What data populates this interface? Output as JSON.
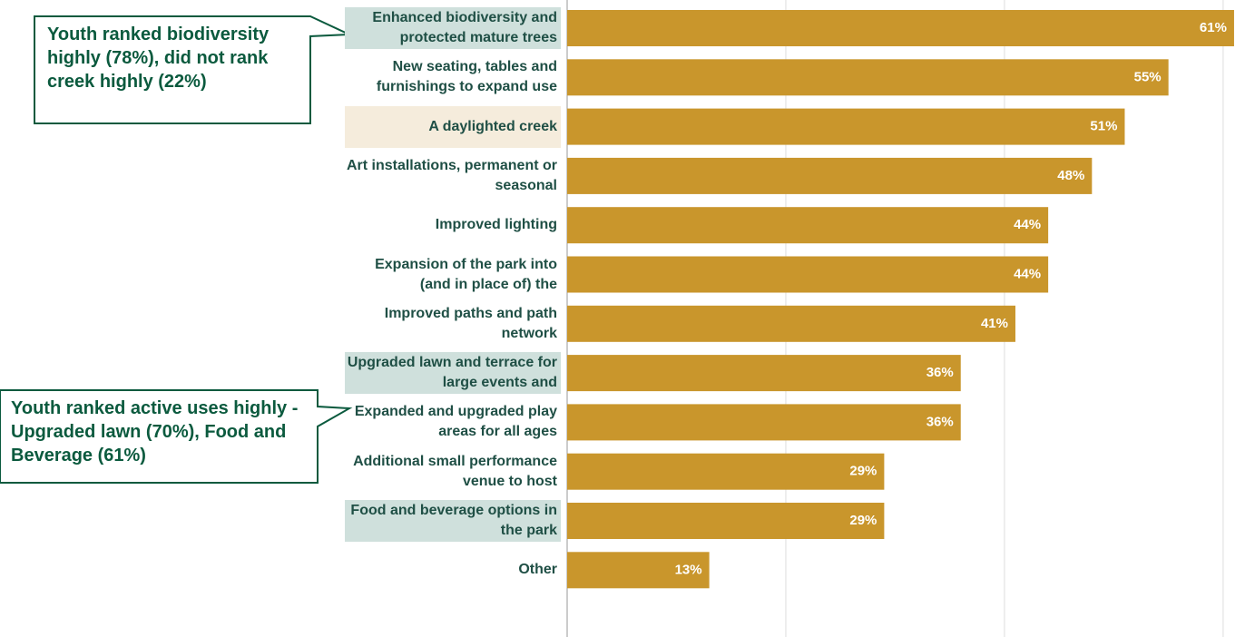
{
  "chart_data": {
    "type": "bar",
    "orientation": "horizontal",
    "categories": [
      "Enhanced biodiversity and protected mature trees",
      "New seating, tables and furnishings to expand use",
      "A daylighted creek",
      "Art installations, permanent or seasonal",
      "Improved lighting",
      "Expansion of the park into (and in place of) the",
      "Improved paths and path network",
      "Upgraded lawn and terrace for large events and",
      "Expanded and upgraded play areas for all ages",
      "Additional small performance venue to host",
      "Food and beverage options in the park",
      "Other"
    ],
    "values": [
      61,
      55,
      51,
      48,
      44,
      44,
      41,
      36,
      36,
      29,
      29,
      13
    ],
    "value_labels": [
      "61%",
      "55%",
      "51%",
      "48%",
      "44%",
      "44%",
      "41%",
      "36%",
      "36%",
      "29%",
      "29%",
      "13%"
    ],
    "color": "#c9962c",
    "category_backgrounds": [
      "#cfe0dc",
      null,
      "#f5ecdc",
      null,
      null,
      null,
      null,
      "#cfe0dc",
      null,
      null,
      "#cfe0dc",
      null
    ],
    "xlim": [
      0,
      62
    ],
    "x_gridlines": [
      20,
      40,
      60
    ],
    "annotations": [
      {
        "text": "Youth ranked biodiversity highly (78%), did not rank creek highly (22%)"
      },
      {
        "text": "Youth ranked active uses highly - Upgraded lawn (70%), Food and Beverage (61%)"
      }
    ]
  }
}
